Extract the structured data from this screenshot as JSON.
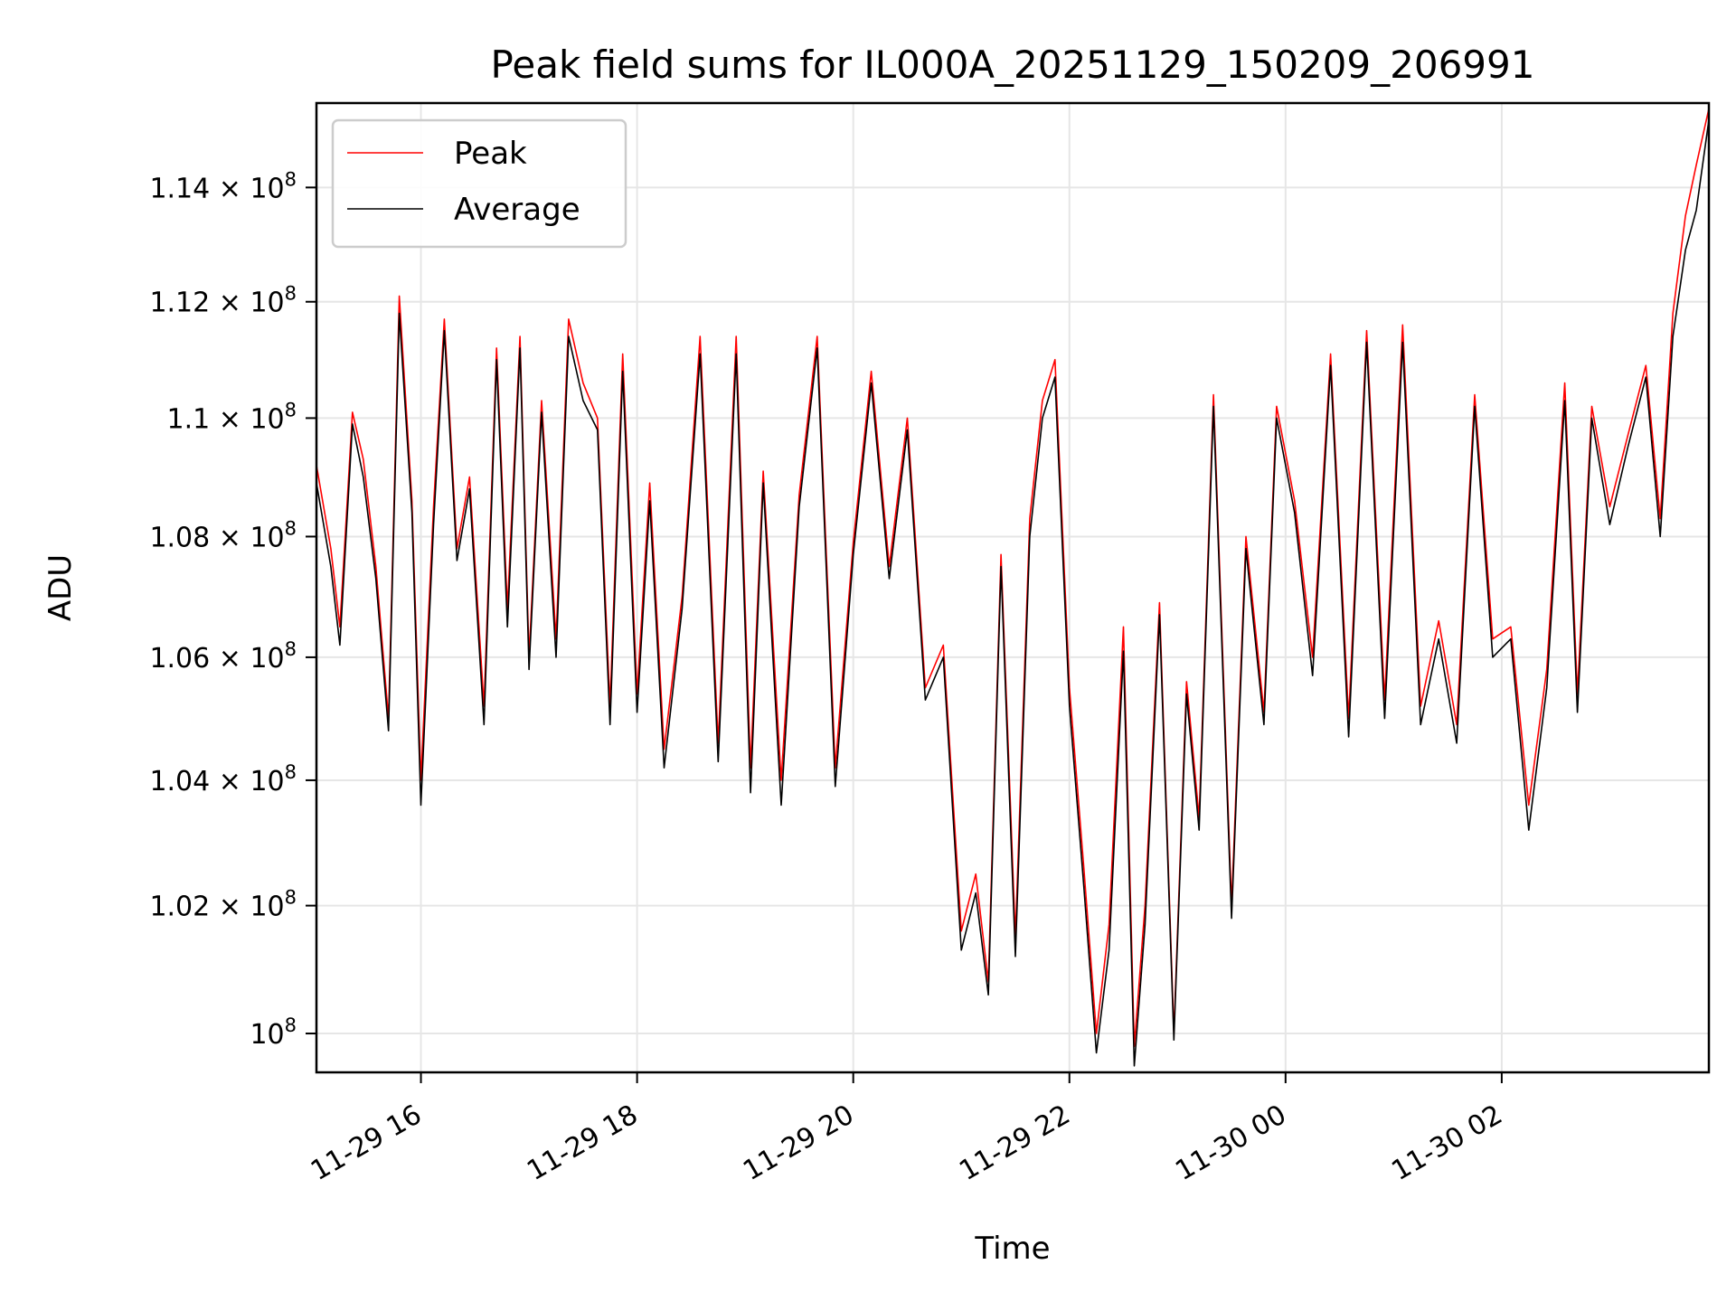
{
  "chart_data": {
    "type": "line",
    "title": "Peak field sums for IL000A_20251129_150209_206991",
    "xlabel": "Time",
    "ylabel": "ADU",
    "y_scale": "log",
    "ylim": [
      99400000,
      115500000
    ],
    "xlim": [
      "2025-11-29 15:02",
      "2025-11-30 03:55"
    ],
    "grid": true,
    "legend_placement": "top-left",
    "x_ticks": [
      {
        "t": "2025-11-29 16:00",
        "label": "11-29 16"
      },
      {
        "t": "2025-11-29 18:00",
        "label": "11-29 18"
      },
      {
        "t": "2025-11-29 20:00",
        "label": "11-29 20"
      },
      {
        "t": "2025-11-29 22:00",
        "label": "11-29 22"
      },
      {
        "t": "2025-11-30 00:00",
        "label": "11-30 00"
      },
      {
        "t": "2025-11-30 02:00",
        "label": "11-30 02"
      }
    ],
    "y_ticks": [
      {
        "value": 100000000,
        "mantissa": "",
        "exponent": "8"
      },
      {
        "value": 102000000,
        "mantissa": "1.02",
        "exponent": "8"
      },
      {
        "value": 104000000,
        "mantissa": "1.04",
        "exponent": "8"
      },
      {
        "value": 106000000,
        "mantissa": "1.06",
        "exponent": "8"
      },
      {
        "value": 108000000,
        "mantissa": "1.08",
        "exponent": "8"
      },
      {
        "value": 110000000,
        "mantissa": "1.1",
        "exponent": "8"
      },
      {
        "value": 112000000,
        "mantissa": "1.12",
        "exponent": "8"
      },
      {
        "value": 114000000,
        "mantissa": "1.14",
        "exponent": "8"
      }
    ],
    "series": [
      {
        "name": "Peak",
        "color": "#ff0000",
        "points": [
          [
            "2025-11-29 15:02",
            109200000
          ],
          [
            "2025-11-29 15:10",
            107800000
          ],
          [
            "2025-11-29 15:15",
            106500000
          ],
          [
            "2025-11-29 15:22",
            110100000
          ],
          [
            "2025-11-29 15:28",
            109300000
          ],
          [
            "2025-11-29 15:35",
            107500000
          ],
          [
            "2025-11-29 15:42",
            105000000
          ],
          [
            "2025-11-29 15:48",
            112100000
          ],
          [
            "2025-11-29 15:55",
            108600000
          ],
          [
            "2025-11-29 16:00",
            104000000
          ],
          [
            "2025-11-29 16:07",
            108500000
          ],
          [
            "2025-11-29 16:13",
            111700000
          ],
          [
            "2025-11-29 16:20",
            107800000
          ],
          [
            "2025-11-29 16:27",
            109000000
          ],
          [
            "2025-11-29 16:35",
            105200000
          ],
          [
            "2025-11-29 16:42",
            111200000
          ],
          [
            "2025-11-29 16:48",
            106800000
          ],
          [
            "2025-11-29 16:55",
            111400000
          ],
          [
            "2025-11-29 17:00",
            106000000
          ],
          [
            "2025-11-29 17:07",
            110300000
          ],
          [
            "2025-11-29 17:15",
            106300000
          ],
          [
            "2025-11-29 17:22",
            111700000
          ],
          [
            "2025-11-29 17:30",
            110600000
          ],
          [
            "2025-11-29 17:38",
            110000000
          ],
          [
            "2025-11-29 17:45",
            105200000
          ],
          [
            "2025-11-29 17:52",
            111100000
          ],
          [
            "2025-11-29 18:00",
            105400000
          ],
          [
            "2025-11-29 18:07",
            108900000
          ],
          [
            "2025-11-29 18:15",
            104500000
          ],
          [
            "2025-11-29 18:25",
            107000000
          ],
          [
            "2025-11-29 18:35",
            111400000
          ],
          [
            "2025-11-29 18:45",
            104600000
          ],
          [
            "2025-11-29 18:55",
            111400000
          ],
          [
            "2025-11-29 19:03",
            104200000
          ],
          [
            "2025-11-29 19:10",
            109100000
          ],
          [
            "2025-11-29 19:20",
            104000000
          ],
          [
            "2025-11-29 19:30",
            108700000
          ],
          [
            "2025-11-29 19:40",
            111400000
          ],
          [
            "2025-11-29 19:50",
            104200000
          ],
          [
            "2025-11-29 20:00",
            107900000
          ],
          [
            "2025-11-29 20:10",
            110800000
          ],
          [
            "2025-11-29 20:20",
            107500000
          ],
          [
            "2025-11-29 20:30",
            110000000
          ],
          [
            "2025-11-29 20:40",
            105500000
          ],
          [
            "2025-11-29 20:50",
            106200000
          ],
          [
            "2025-11-29 21:00",
            101600000
          ],
          [
            "2025-11-29 21:08",
            102500000
          ],
          [
            "2025-11-29 21:15",
            100800000
          ],
          [
            "2025-11-29 21:22",
            107700000
          ],
          [
            "2025-11-29 21:30",
            101500000
          ],
          [
            "2025-11-29 21:38",
            108300000
          ],
          [
            "2025-11-29 21:45",
            110300000
          ],
          [
            "2025-11-29 21:52",
            111000000
          ],
          [
            "2025-11-29 22:00",
            105500000
          ],
          [
            "2025-11-29 22:08",
            102600000
          ],
          [
            "2025-11-29 22:15",
            100000000
          ],
          [
            "2025-11-29 22:22",
            101700000
          ],
          [
            "2025-11-29 22:30",
            106500000
          ],
          [
            "2025-11-29 22:36",
            99800000
          ],
          [
            "2025-11-29 22:42",
            102000000
          ],
          [
            "2025-11-29 22:50",
            106900000
          ],
          [
            "2025-11-29 22:58",
            100000000
          ],
          [
            "2025-11-29 23:05",
            105600000
          ],
          [
            "2025-11-29 23:12",
            103400000
          ],
          [
            "2025-11-29 23:20",
            110400000
          ],
          [
            "2025-11-29 23:30",
            102000000
          ],
          [
            "2025-11-29 23:38",
            108000000
          ],
          [
            "2025-11-29 23:48",
            105100000
          ],
          [
            "2025-11-29 23:55",
            110200000
          ],
          [
            "2025-11-30 00:05",
            108600000
          ],
          [
            "2025-11-30 00:15",
            106000000
          ],
          [
            "2025-11-30 00:25",
            111100000
          ],
          [
            "2025-11-30 00:35",
            105000000
          ],
          [
            "2025-11-30 00:45",
            111500000
          ],
          [
            "2025-11-30 00:55",
            105300000
          ],
          [
            "2025-11-30 01:05",
            111600000
          ],
          [
            "2025-11-30 01:15",
            105200000
          ],
          [
            "2025-11-30 01:25",
            106600000
          ],
          [
            "2025-11-30 01:35",
            104900000
          ],
          [
            "2025-11-30 01:45",
            110400000
          ],
          [
            "2025-11-30 01:55",
            106300000
          ],
          [
            "2025-11-30 02:05",
            106500000
          ],
          [
            "2025-11-30 02:15",
            103600000
          ],
          [
            "2025-11-30 02:25",
            105800000
          ],
          [
            "2025-11-30 02:35",
            110600000
          ],
          [
            "2025-11-30 02:42",
            105400000
          ],
          [
            "2025-11-30 02:50",
            110200000
          ],
          [
            "2025-11-30 03:00",
            108500000
          ],
          [
            "2025-11-30 03:10",
            109700000
          ],
          [
            "2025-11-30 03:20",
            110900000
          ],
          [
            "2025-11-30 03:28",
            108300000
          ],
          [
            "2025-11-30 03:35",
            111800000
          ],
          [
            "2025-11-30 03:42",
            113500000
          ],
          [
            "2025-11-30 03:48",
            114400000
          ],
          [
            "2025-11-30 03:55",
            115400000
          ]
        ]
      },
      {
        "name": "Average",
        "color": "#000000",
        "points": [
          [
            "2025-11-29 15:02",
            108900000
          ],
          [
            "2025-11-29 15:10",
            107500000
          ],
          [
            "2025-11-29 15:15",
            106200000
          ],
          [
            "2025-11-29 15:22",
            109900000
          ],
          [
            "2025-11-29 15:28",
            109000000
          ],
          [
            "2025-11-29 15:35",
            107300000
          ],
          [
            "2025-11-29 15:42",
            104800000
          ],
          [
            "2025-11-29 15:48",
            111800000
          ],
          [
            "2025-11-29 15:55",
            108400000
          ],
          [
            "2025-11-29 16:00",
            103600000
          ],
          [
            "2025-11-29 16:07",
            108200000
          ],
          [
            "2025-11-29 16:13",
            111500000
          ],
          [
            "2025-11-29 16:20",
            107600000
          ],
          [
            "2025-11-29 16:27",
            108800000
          ],
          [
            "2025-11-29 16:35",
            104900000
          ],
          [
            "2025-11-29 16:42",
            111000000
          ],
          [
            "2025-11-29 16:48",
            106500000
          ],
          [
            "2025-11-29 16:55",
            111200000
          ],
          [
            "2025-11-29 17:00",
            105800000
          ],
          [
            "2025-11-29 17:07",
            110100000
          ],
          [
            "2025-11-29 17:15",
            106000000
          ],
          [
            "2025-11-29 17:22",
            111400000
          ],
          [
            "2025-11-29 17:30",
            110300000
          ],
          [
            "2025-11-29 17:38",
            109800000
          ],
          [
            "2025-11-29 17:45",
            104900000
          ],
          [
            "2025-11-29 17:52",
            110800000
          ],
          [
            "2025-11-29 18:00",
            105100000
          ],
          [
            "2025-11-29 18:07",
            108600000
          ],
          [
            "2025-11-29 18:15",
            104200000
          ],
          [
            "2025-11-29 18:25",
            106800000
          ],
          [
            "2025-11-29 18:35",
            111100000
          ],
          [
            "2025-11-29 18:45",
            104300000
          ],
          [
            "2025-11-29 18:55",
            111100000
          ],
          [
            "2025-11-29 19:03",
            103800000
          ],
          [
            "2025-11-29 19:10",
            108900000
          ],
          [
            "2025-11-29 19:20",
            103600000
          ],
          [
            "2025-11-29 19:30",
            108500000
          ],
          [
            "2025-11-29 19:40",
            111200000
          ],
          [
            "2025-11-29 19:50",
            103900000
          ],
          [
            "2025-11-29 20:00",
            107700000
          ],
          [
            "2025-11-29 20:10",
            110600000
          ],
          [
            "2025-11-29 20:20",
            107300000
          ],
          [
            "2025-11-29 20:30",
            109800000
          ],
          [
            "2025-11-29 20:40",
            105300000
          ],
          [
            "2025-11-29 20:50",
            106000000
          ],
          [
            "2025-11-29 21:00",
            101300000
          ],
          [
            "2025-11-29 21:08",
            102200000
          ],
          [
            "2025-11-29 21:15",
            100600000
          ],
          [
            "2025-11-29 21:22",
            107500000
          ],
          [
            "2025-11-29 21:30",
            101200000
          ],
          [
            "2025-11-29 21:38",
            108000000
          ],
          [
            "2025-11-29 21:45",
            110000000
          ],
          [
            "2025-11-29 21:52",
            110700000
          ],
          [
            "2025-11-29 22:00",
            105200000
          ],
          [
            "2025-11-29 22:08",
            102300000
          ],
          [
            "2025-11-29 22:15",
            99700000
          ],
          [
            "2025-11-29 22:22",
            101300000
          ],
          [
            "2025-11-29 22:30",
            106100000
          ],
          [
            "2025-11-29 22:36",
            99500000
          ],
          [
            "2025-11-29 22:42",
            101700000
          ],
          [
            "2025-11-29 22:50",
            106700000
          ],
          [
            "2025-11-29 22:58",
            99900000
          ],
          [
            "2025-11-29 23:05",
            105400000
          ],
          [
            "2025-11-29 23:12",
            103200000
          ],
          [
            "2025-11-29 23:20",
            110200000
          ],
          [
            "2025-11-29 23:30",
            101800000
          ],
          [
            "2025-11-29 23:38",
            107800000
          ],
          [
            "2025-11-29 23:48",
            104900000
          ],
          [
            "2025-11-29 23:55",
            110000000
          ],
          [
            "2025-11-30 00:05",
            108400000
          ],
          [
            "2025-11-30 00:15",
            105700000
          ],
          [
            "2025-11-30 00:25",
            110900000
          ],
          [
            "2025-11-30 00:35",
            104700000
          ],
          [
            "2025-11-30 00:45",
            111300000
          ],
          [
            "2025-11-30 00:55",
            105000000
          ],
          [
            "2025-11-30 01:05",
            111300000
          ],
          [
            "2025-11-30 01:15",
            104900000
          ],
          [
            "2025-11-30 01:25",
            106300000
          ],
          [
            "2025-11-30 01:35",
            104600000
          ],
          [
            "2025-11-30 01:45",
            110200000
          ],
          [
            "2025-11-30 01:55",
            106000000
          ],
          [
            "2025-11-30 02:05",
            106300000
          ],
          [
            "2025-11-30 02:15",
            103200000
          ],
          [
            "2025-11-30 02:25",
            105500000
          ],
          [
            "2025-11-30 02:35",
            110300000
          ],
          [
            "2025-11-30 02:42",
            105100000
          ],
          [
            "2025-11-30 02:50",
            110000000
          ],
          [
            "2025-11-30 03:00",
            108200000
          ],
          [
            "2025-11-30 03:10",
            109500000
          ],
          [
            "2025-11-30 03:20",
            110700000
          ],
          [
            "2025-11-30 03:28",
            108000000
          ],
          [
            "2025-11-30 03:35",
            111400000
          ],
          [
            "2025-11-30 03:42",
            112900000
          ],
          [
            "2025-11-30 03:48",
            113600000
          ],
          [
            "2025-11-30 03:55",
            115200000
          ]
        ]
      }
    ]
  }
}
